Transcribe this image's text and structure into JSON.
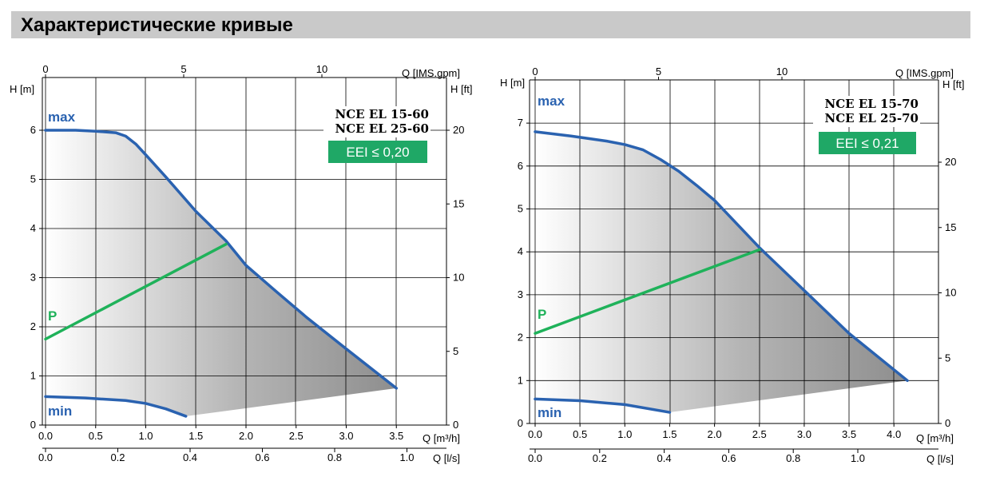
{
  "page": {
    "title": "Характеристические кривые"
  },
  "chart_data": [
    {
      "type": "line",
      "models": [
        "NCE EL 15-60",
        "NCE EL 25-60"
      ],
      "eei_label": "EEI ≤ 0,20",
      "ylabel": "H [m]",
      "ylabel_right": "H [ft]",
      "xlabel": "Q [m³/h]",
      "xlabel_top": "Q [IMS.gpm]",
      "xlabel_bottom": "Q [l/s]",
      "xlim": [
        0,
        3.5
      ],
      "ylim": [
        0,
        6.5
      ],
      "grid": true,
      "x_ticks": [
        "0.0",
        "0.5",
        "1.0",
        "1.5",
        "2.0",
        "2.5",
        "3.0",
        "3.5"
      ],
      "x_tick_values": [
        0,
        0.5,
        1.0,
        1.5,
        2.0,
        2.5,
        3.0,
        3.5
      ],
      "y_ticks": [
        "0",
        "1",
        "2",
        "3",
        "4",
        "5",
        "6"
      ],
      "y_tick_values": [
        0,
        1,
        2,
        3,
        4,
        5,
        6
      ],
      "top_ticks": [
        "0",
        "5",
        "10"
      ],
      "top_tick_values": [
        0,
        5,
        10
      ],
      "right_ticks": [
        "0",
        "5",
        "10",
        "15",
        "20"
      ],
      "right_tick_values": [
        0,
        5,
        10,
        15,
        20
      ],
      "bottom_ticks": [
        "0.0",
        "0.2",
        "0.4",
        "0.6",
        "0.8",
        "1.0"
      ],
      "bottom_tick_values": [
        0,
        0.2,
        0.4,
        0.6,
        0.8,
        1.0
      ],
      "series": [
        {
          "name": "max",
          "x": [
            0,
            0.3,
            0.5,
            0.7,
            0.8,
            0.9,
            1.0,
            1.2,
            1.5,
            1.8,
            2.0,
            2.3,
            2.6,
            3.0,
            3.5
          ],
          "y": [
            6.0,
            6.0,
            5.98,
            5.95,
            5.88,
            5.72,
            5.5,
            5.05,
            4.35,
            3.75,
            3.25,
            2.72,
            2.2,
            1.55,
            0.75
          ]
        },
        {
          "name": "min",
          "x": [
            0,
            0.4,
            0.8,
            1.0,
            1.2,
            1.4
          ],
          "y": [
            0.58,
            0.55,
            0.5,
            0.44,
            0.33,
            0.18
          ]
        },
        {
          "name": "P",
          "x": [
            0,
            1.8
          ],
          "y": [
            1.75,
            3.68
          ]
        }
      ]
    },
    {
      "type": "line",
      "models": [
        "NCE EL 15-70",
        "NCE EL 25-70"
      ],
      "eei_label": "EEI ≤ 0,21",
      "ylabel": "H [m]",
      "ylabel_right": "H [ft]",
      "xlabel": "Q [m³/h]",
      "xlabel_top": "Q [IMS.gpm]",
      "xlabel_bottom": "Q [l/s]",
      "xlim": [
        0,
        4.2
      ],
      "ylim": [
        0,
        7.6
      ],
      "grid": true,
      "x_ticks": [
        "0.0",
        "0.5",
        "1.0",
        "1.5",
        "2.0",
        "2.5",
        "3.0",
        "3.5",
        "4.0"
      ],
      "x_tick_values": [
        0,
        0.5,
        1.0,
        1.5,
        2.0,
        2.5,
        3.0,
        3.5,
        4.0
      ],
      "y_ticks": [
        "0",
        "1",
        "2",
        "3",
        "4",
        "5",
        "6",
        "7"
      ],
      "y_tick_values": [
        0,
        1,
        2,
        3,
        4,
        5,
        6,
        7
      ],
      "top_ticks": [
        "0",
        "5",
        "10"
      ],
      "top_tick_values": [
        0,
        5,
        10
      ],
      "right_ticks": [
        "0",
        "5",
        "10",
        "15",
        "20"
      ],
      "right_tick_values": [
        0,
        5,
        10,
        15,
        20
      ],
      "bottom_ticks": [
        "0.0",
        "0.2",
        "0.4",
        "0.6",
        "0.8",
        "1.0"
      ],
      "bottom_tick_values": [
        0,
        0.2,
        0.4,
        0.6,
        0.8,
        1.0
      ],
      "series": [
        {
          "name": "max",
          "x": [
            0,
            0.4,
            0.8,
            1.0,
            1.2,
            1.4,
            1.6,
            1.8,
            2.0,
            2.5,
            3.0,
            3.5,
            4.15
          ],
          "y": [
            6.8,
            6.7,
            6.58,
            6.5,
            6.38,
            6.15,
            5.88,
            5.55,
            5.2,
            4.1,
            3.1,
            2.1,
            1.0
          ]
        },
        {
          "name": "min",
          "x": [
            0,
            0.5,
            1.0,
            1.5
          ],
          "y": [
            0.57,
            0.53,
            0.44,
            0.26
          ]
        },
        {
          "name": "P",
          "x": [
            0,
            2.5
          ],
          "y": [
            2.1,
            4.05
          ]
        }
      ]
    }
  ]
}
